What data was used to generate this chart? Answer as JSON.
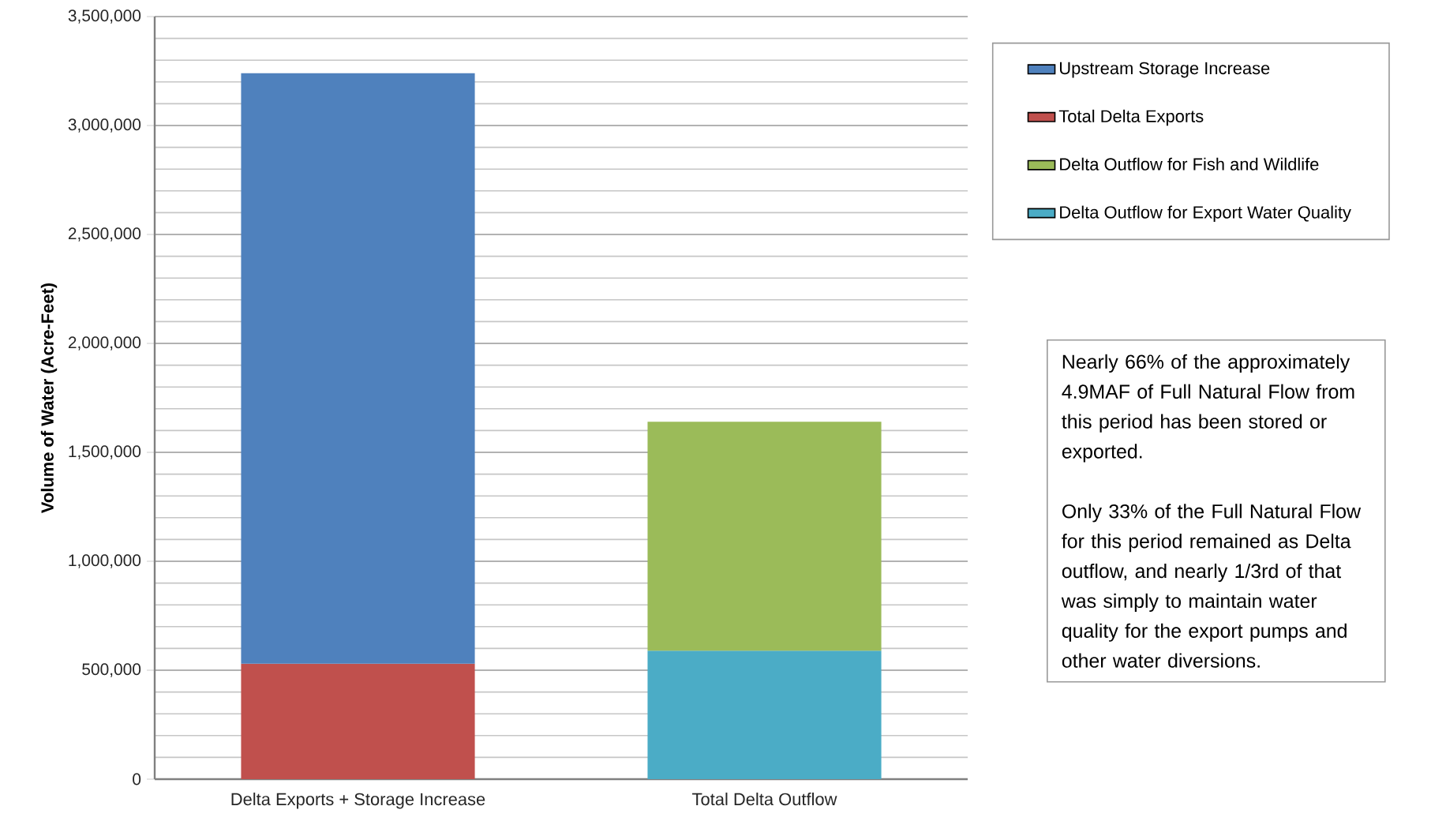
{
  "chart_data": {
    "type": "bar",
    "stacked": true,
    "ylabel": "Volume of Water (Acre-Feet)",
    "categories": [
      "Delta Exports + Storage Increase",
      "Total Delta Outflow"
    ],
    "series": [
      {
        "name": "Total Delta Exports",
        "color": "#c0504d",
        "values": [
          530000,
          null
        ]
      },
      {
        "name": "Upstream Storage Increase",
        "color": "#4f81bd",
        "values": [
          2710000,
          null
        ]
      },
      {
        "name": "Delta Outflow for Export Water Quality",
        "color": "#4bacc6",
        "values": [
          null,
          590000
        ]
      },
      {
        "name": "Delta Outflow for Fish and Wildlife",
        "color": "#9bbb59",
        "values": [
          null,
          1050000
        ]
      }
    ],
    "ylim": [
      0,
      3500000
    ],
    "yticks": [
      {
        "value": 0,
        "label": "0"
      },
      {
        "value": 500000,
        "label": "500,000"
      },
      {
        "value": 1000000,
        "label": "1,000,000"
      },
      {
        "value": 1500000,
        "label": "1,500,000"
      },
      {
        "value": 2000000,
        "label": "2,000,000"
      },
      {
        "value": 2500000,
        "label": "2,500,000"
      },
      {
        "value": 3000000,
        "label": "3,000,000"
      },
      {
        "value": 3500000,
        "label": "3,500,000"
      }
    ],
    "grid": "y",
    "legend": "right",
    "annotations": [
      "Nearly 66% of the approximately 4.9MAF of Full Natural Flow from this period has been stored or exported.",
      "Only 33% of the Full Natural Flow for this period remained as Delta outflow, and nearly 1/3rd of that was simply to maintain water quality for the export pumps and other water diversions."
    ]
  }
}
